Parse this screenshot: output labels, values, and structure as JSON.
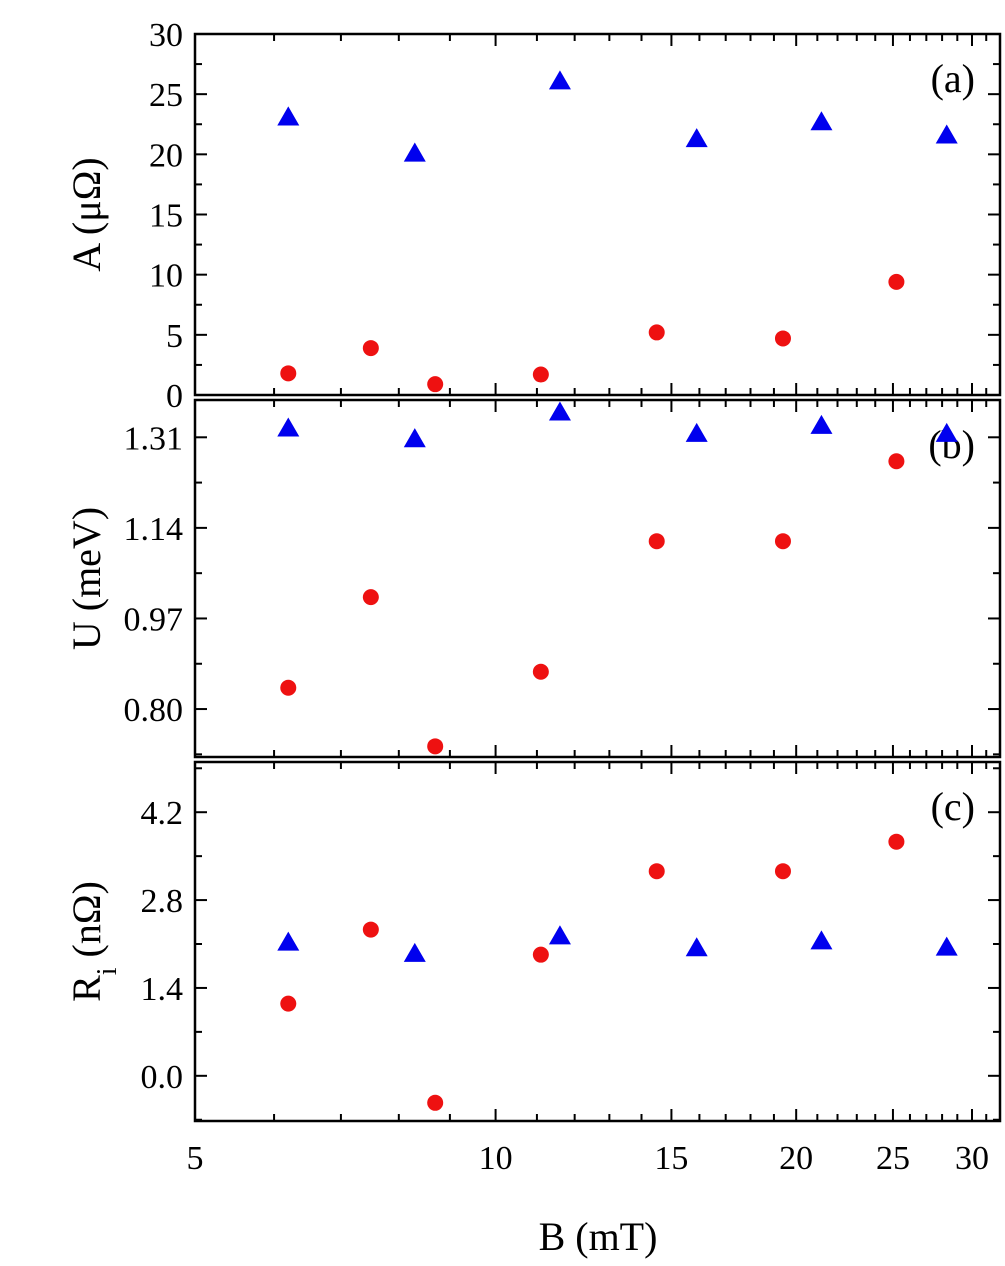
{
  "chart_data": {
    "type": "scatter",
    "x_scale": "log",
    "xlabel": "B (mT)",
    "xlim": [
      5,
      32
    ],
    "x_tick_values": [
      5,
      10,
      15,
      20,
      25,
      30
    ],
    "x_tick_labels": [
      "5",
      "10",
      "15",
      "20",
      "25",
      "30"
    ],
    "colors": {
      "circles": "#ee1111",
      "triangles": "#0000ee",
      "axes": "#000000"
    },
    "panels": [
      {
        "id": "a",
        "panel_label": "(a)",
        "ylabel_main": "A (",
        "ylabel_unit": "μΩ",
        "ylabel_end": ")",
        "ylim": [
          0,
          30
        ],
        "y_tick_values": [
          0,
          5,
          10,
          15,
          20,
          25,
          30
        ],
        "y_tick_labels": [
          "0",
          "5",
          "10",
          "15",
          "20",
          "25",
          "30"
        ],
        "series": [
          {
            "name": "circles",
            "marker": "circle",
            "x": [
              6.2,
              7.5,
              8.7,
              11.1,
              14.5,
              19.4,
              25.2
            ],
            "y": [
              1.8,
              3.9,
              0.9,
              1.7,
              5.2,
              4.7,
              9.4
            ]
          },
          {
            "name": "triangles",
            "marker": "triangle",
            "x": [
              6.2,
              8.3,
              11.6,
              15.9,
              21.2,
              28.3
            ],
            "y": [
              23.0,
              20.0,
              26.0,
              21.2,
              22.6,
              21.5
            ]
          }
        ]
      },
      {
        "id": "b",
        "panel_label": "(b)",
        "ylabel_main": "U (meV)",
        "ylim": [
          0.71,
          1.38
        ],
        "y_tick_values": [
          0.8,
          0.97,
          1.14,
          1.31
        ],
        "y_tick_labels": [
          "0.80",
          "0.97",
          "1.14",
          "1.31"
        ],
        "series": [
          {
            "name": "circles",
            "marker": "circle",
            "x": [
              6.2,
              7.5,
              8.7,
              11.1,
              14.5,
              19.4,
              25.2
            ],
            "y": [
              0.84,
              1.01,
              0.73,
              0.87,
              1.115,
              1.115,
              1.265
            ]
          },
          {
            "name": "triangles",
            "marker": "triangle",
            "x": [
              6.2,
              8.3,
              11.6,
              15.9,
              21.2,
              28.3
            ],
            "y": [
              1.325,
              1.305,
              1.355,
              1.315,
              1.33,
              1.315
            ]
          }
        ]
      },
      {
        "id": "c",
        "panel_label": "(c)",
        "ylabel_main": "R",
        "ylabel_sub": "i",
        "ylabel_rest": " (nΩ)",
        "ylim": [
          -0.72,
          5.0
        ],
        "y_tick_values": [
          0.0,
          1.4,
          2.8,
          4.2
        ],
        "y_tick_labels": [
          "0.0",
          "1.4",
          "2.8",
          "4.2"
        ],
        "series": [
          {
            "name": "circles",
            "marker": "circle",
            "x": [
              6.2,
              7.5,
              8.7,
              11.1,
              14.5,
              19.4,
              25.2
            ],
            "y": [
              1.15,
              2.33,
              -0.43,
              1.93,
              3.26,
              3.26,
              3.73
            ]
          },
          {
            "name": "triangles",
            "marker": "triangle",
            "x": [
              6.2,
              8.3,
              11.6,
              15.9,
              21.2,
              28.3
            ],
            "y": [
              2.11,
              1.93,
              2.21,
              2.02,
              2.13,
              2.03
            ]
          }
        ]
      }
    ]
  }
}
